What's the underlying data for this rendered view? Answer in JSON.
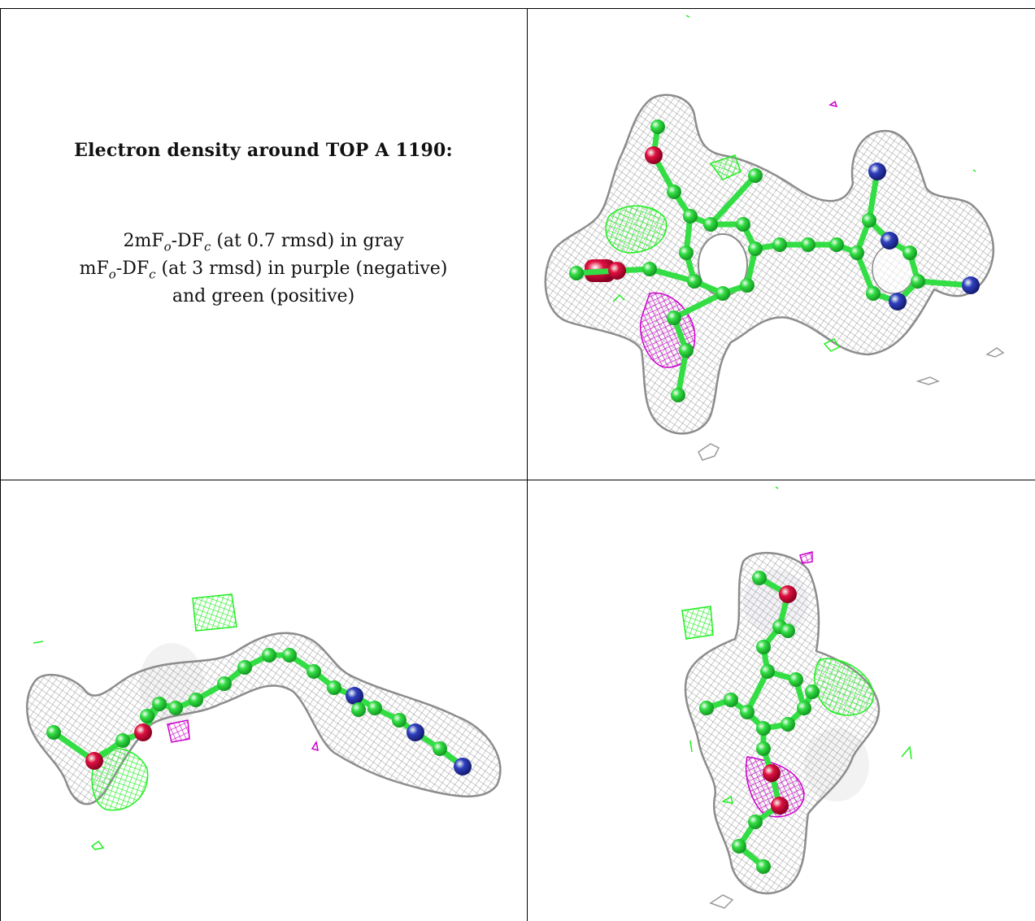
{
  "legend": {
    "title": "Electron density around TOP A 1190:",
    "line1": {
      "prefix": "2mF",
      "sub_o": "o",
      "mid": "-DF",
      "sub_c": "c",
      "suffix": " (at 0.7 rmsd) in gray"
    },
    "line2": {
      "prefix": "mF",
      "sub_o": "o",
      "mid": "-DF",
      "sub_c": "c",
      "suffix": " (at 3 rmsd) in purple (negative)"
    },
    "line3": "and green (positive)"
  },
  "colors": {
    "mesh_gray": "#9a9a9a",
    "positive_green": "#22ee22",
    "negative_purple": "#cc00cc",
    "carbon_green": "#33dd44",
    "oxygen_red": "#e01040",
    "nitrogen_blue": "#3040c0",
    "border": "#000000"
  },
  "panels": [
    {
      "name": "view-top-right"
    },
    {
      "name": "view-bottom-left"
    },
    {
      "name": "view-bottom-right"
    }
  ]
}
